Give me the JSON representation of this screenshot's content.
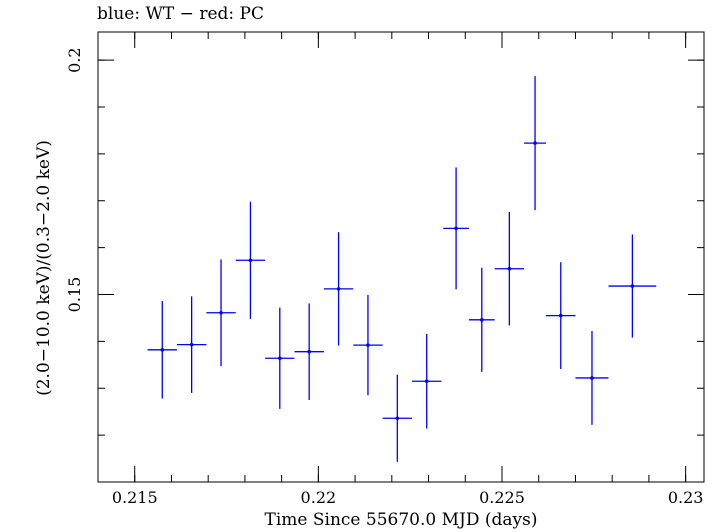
{
  "chart_data": {
    "type": "scatter",
    "title": "blue: WT − red: PC",
    "xlabel": "Time Since 55670.0 MJD (days)",
    "ylabel": "(2.0−10.0 keV)/(0.3−2.0 keV)",
    "xlim": [
      0.214,
      0.2305
    ],
    "ylim": [
      0.11,
      0.206
    ],
    "xticks": [
      0.215,
      0.22,
      0.225,
      0.23
    ],
    "xtick_labels": [
      "0.215",
      "0.22",
      "0.225",
      "0.23"
    ],
    "yticks": [
      0.15,
      0.2
    ],
    "ytick_labels": [
      "0.15",
      "0.2"
    ],
    "grid": false,
    "series": [
      {
        "color": "#0000ff",
        "points": [
          {
            "x": 0.21575,
            "y": 0.1382,
            "xerr": 0.0004,
            "yerr": 0.0104
          },
          {
            "x": 0.21655,
            "y": 0.1393,
            "xerr": 0.0004,
            "yerr": 0.0103
          },
          {
            "x": 0.21735,
            "y": 0.1461,
            "xerr": 0.0004,
            "yerr": 0.0114
          },
          {
            "x": 0.21815,
            "y": 0.1573,
            "xerr": 0.0004,
            "yerr": 0.0125
          },
          {
            "x": 0.21895,
            "y": 0.1364,
            "xerr": 0.0004,
            "yerr": 0.0108
          },
          {
            "x": 0.21975,
            "y": 0.1378,
            "xerr": 0.0004,
            "yerr": 0.0103
          },
          {
            "x": 0.22055,
            "y": 0.1512,
            "xerr": 0.0004,
            "yerr": 0.0121
          },
          {
            "x": 0.22135,
            "y": 0.1392,
            "xerr": 0.0004,
            "yerr": 0.0107
          },
          {
            "x": 0.22215,
            "y": 0.1236,
            "xerr": 0.0004,
            "yerr": 0.0093
          },
          {
            "x": 0.22295,
            "y": 0.1315,
            "xerr": 0.0004,
            "yerr": 0.0101
          },
          {
            "x": 0.22375,
            "y": 0.1641,
            "xerr": 0.00035,
            "yerr": 0.013
          },
          {
            "x": 0.22445,
            "y": 0.1446,
            "xerr": 0.00035,
            "yerr": 0.0111
          },
          {
            "x": 0.2252,
            "y": 0.1555,
            "xerr": 0.0004,
            "yerr": 0.0121
          },
          {
            "x": 0.2259,
            "y": 0.1823,
            "xerr": 0.0003,
            "yerr": 0.0143
          },
          {
            "x": 0.2266,
            "y": 0.1455,
            "xerr": 0.0004,
            "yerr": 0.0114
          },
          {
            "x": 0.22745,
            "y": 0.1322,
            "xerr": 0.00045,
            "yerr": 0.01
          },
          {
            "x": 0.22855,
            "y": 0.1518,
            "xerr": 0.00065,
            "yerr": 0.011
          }
        ]
      }
    ]
  }
}
